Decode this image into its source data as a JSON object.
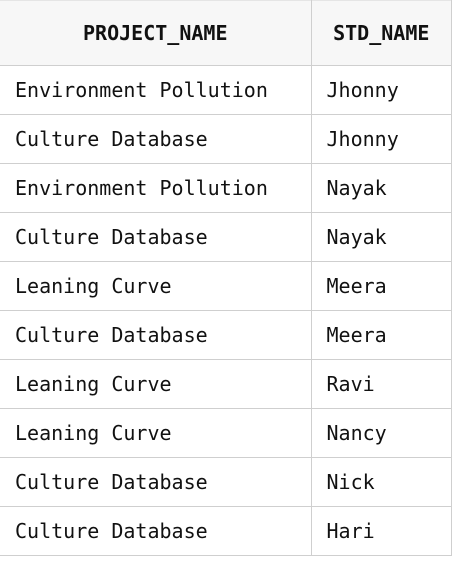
{
  "table": {
    "headers": [
      "PROJECT_NAME",
      "STD_NAME"
    ],
    "rows": [
      [
        "Environment Pollution",
        "Jhonny"
      ],
      [
        "Culture Database",
        "Jhonny"
      ],
      [
        "Environment Pollution",
        "Nayak"
      ],
      [
        "Culture Database",
        "Nayak"
      ],
      [
        "Leaning Curve",
        "Meera"
      ],
      [
        "Culture Database",
        "Meera"
      ],
      [
        "Leaning Curve",
        "Ravi"
      ],
      [
        "Leaning Curve",
        "Nancy"
      ],
      [
        "Culture Database",
        "Nick"
      ],
      [
        "Culture Database",
        "Hari"
      ]
    ]
  }
}
